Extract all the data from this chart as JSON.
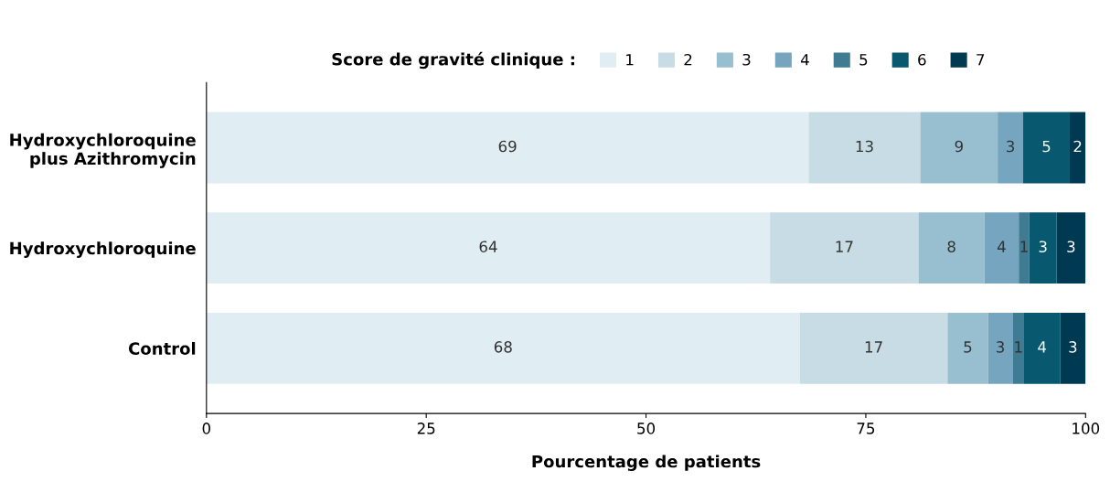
{
  "chart_data": {
    "type": "bar",
    "orientation": "horizontal",
    "stacked": true,
    "categories": [
      "Hydroxychloroquine\nplus Azithromycin",
      "Hydroxychloroquine",
      "Control"
    ],
    "xlabel": "Pourcentage de patients",
    "legend_title": "Score de gravité clinique :",
    "legend": "top",
    "xlim": [
      0,
      100
    ],
    "xticks": [
      0,
      25,
      50,
      75,
      100
    ],
    "grid": false,
    "series": [
      {
        "name": "1",
        "color": "#e0eef4",
        "values": [
          68.5,
          64.1,
          67.5
        ],
        "value_labels": [
          "69",
          "64",
          "68"
        ]
      },
      {
        "name": "2",
        "color": "#c8dce6",
        "values": [
          12.7,
          16.9,
          16.8
        ],
        "value_labels": [
          "13",
          "17",
          "17"
        ]
      },
      {
        "name": "3",
        "color": "#98bfd0",
        "values": [
          8.8,
          7.5,
          4.6
        ],
        "value_labels": [
          "9",
          "8",
          "5"
        ]
      },
      {
        "name": "4",
        "color": "#75a5bf",
        "values": [
          2.9,
          3.9,
          2.8
        ],
        "value_labels": [
          "3",
          "4",
          "3"
        ]
      },
      {
        "name": "5",
        "color": "#3f7b92",
        "values": [
          0,
          1.2,
          1.3
        ],
        "value_labels": [
          null,
          "1",
          "1"
        ]
      },
      {
        "name": "6",
        "color": "#08586f",
        "values": [
          5.3,
          3.1,
          4.1
        ],
        "value_labels": [
          "5",
          "3",
          "4"
        ]
      },
      {
        "name": "7",
        "color": "#003a52",
        "values": [
          1.8,
          3.3,
          2.9
        ],
        "value_labels": [
          "2",
          "3",
          "3"
        ]
      }
    ]
  }
}
